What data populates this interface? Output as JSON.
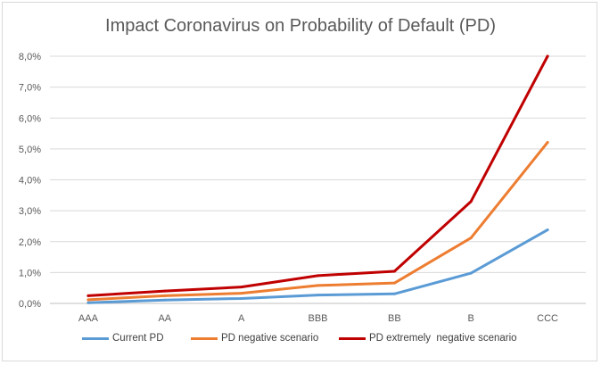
{
  "chart_data": {
    "type": "line",
    "title": "Impact Coronavirus on Probability of Default (PD)",
    "categories": [
      "AAA",
      "AA",
      "A",
      "BBB",
      "BB",
      "B",
      "CCC"
    ],
    "y_ticks": [
      "0,0%",
      "1,0%",
      "2,0%",
      "3,0%",
      "4,0%",
      "5,0%",
      "6,0%",
      "7,0%",
      "8,0%"
    ],
    "ylim": [
      0,
      8
    ],
    "y_unit": "%",
    "grid": true,
    "legend_position": "bottom",
    "series": [
      {
        "name": "Current PD",
        "color": "#5b9bd5",
        "values": [
          0.02,
          0.11,
          0.16,
          0.27,
          0.31,
          0.98,
          2.38
        ]
      },
      {
        "name": "PD negative scenario",
        "color": "#ed7d31",
        "values": [
          0.12,
          0.25,
          0.33,
          0.58,
          0.66,
          2.12,
          5.21
        ]
      },
      {
        "name": "PD extremely  negative scenario",
        "color": "#c00000",
        "values": [
          0.25,
          0.4,
          0.53,
          0.9,
          1.04,
          3.3,
          8.0
        ]
      }
    ]
  }
}
